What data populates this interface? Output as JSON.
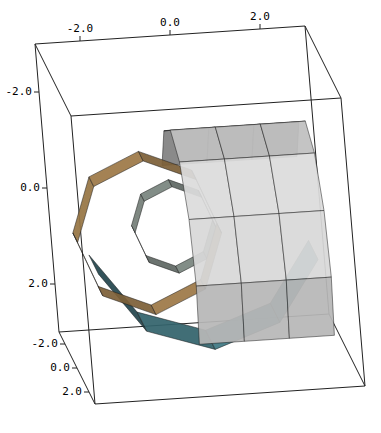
{
  "chart_data": {
    "type": "surface3d",
    "xlim": [
      -3,
      3
    ],
    "ylim": [
      -3,
      3
    ],
    "zlim": [
      -3,
      3
    ],
    "xticks": [
      {
        "value": -2,
        "label": "-2.0"
      },
      {
        "value": 0,
        "label": "0.0"
      },
      {
        "value": 2,
        "label": "2.0"
      }
    ],
    "yticks": [
      {
        "value": -2,
        "label": "-2.0"
      },
      {
        "value": 0,
        "label": "0.0"
      },
      {
        "value": 2,
        "label": "2.0"
      }
    ],
    "zticks": [
      {
        "value": -2,
        "label": "-2.0"
      },
      {
        "value": 0,
        "label": "0.0"
      },
      {
        "value": 2,
        "label": "2.0"
      }
    ],
    "surfaces": [
      {
        "color": "#e8e8e8",
        "points": [
          [
            [
              -0.5,
              -0.5,
              -2.25
            ],
            [
              -0.5,
              -1.46,
              -1.3
            ],
            [
              -0.5,
              -1.8,
              0
            ],
            [
              -0.5,
              -1.46,
              1.3
            ],
            [
              -0.5,
              -0.5,
              2.25
            ],
            [
              -0.5,
              0.8,
              2.6
            ],
            [
              -0.5,
              2.1,
              2.25
            ]
          ],
          [
            [
              0.5,
              -0.5,
              -2.25
            ],
            [
              0.5,
              -1.46,
              -1.3
            ],
            [
              0.5,
              -1.8,
              0
            ],
            [
              0.5,
              -1.46,
              1.3
            ],
            [
              0.5,
              -0.5,
              2.25
            ],
            [
              0.5,
              0.8,
              2.6
            ],
            [
              0.5,
              2.1,
              2.25
            ]
          ],
          [
            [
              1.5,
              -0.5,
              -2.25
            ],
            [
              1.5,
              -1.46,
              -1.3
            ],
            [
              1.5,
              -1.8,
              0
            ],
            [
              1.5,
              -1.46,
              1.3
            ],
            [
              1.5,
              -0.5,
              2.25
            ],
            [
              1.5,
              0.8,
              2.6
            ],
            [
              1.5,
              2.1,
              2.25
            ]
          ],
          [
            [
              2.5,
              -0.5,
              -2.25
            ],
            [
              2.5,
              -1.46,
              -1.3
            ],
            [
              2.5,
              -1.8,
              0
            ],
            [
              2.5,
              -1.46,
              1.3
            ],
            [
              2.5,
              -0.5,
              2.25
            ],
            [
              2.5,
              0.8,
              2.6
            ],
            [
              2.5,
              2.1,
              2.25
            ]
          ]
        ]
      },
      {
        "color": "#c89a5a",
        "points": [
          [
            [
              0.4,
              0.3,
              -0.4
            ],
            [
              -0.06,
              1.44,
              -0.4
            ],
            [
              -1.2,
              1.9,
              -0.4
            ],
            [
              -2.34,
              1.44,
              -0.4
            ],
            [
              -2.8,
              0.3,
              -0.4
            ],
            [
              -2.34,
              -0.84,
              -0.4
            ],
            [
              -1.2,
              -1.3,
              -0.4
            ],
            [
              -0.06,
              -0.84,
              -0.4
            ],
            [
              0.4,
              0.3,
              -0.4
            ]
          ],
          [
            [
              0.4,
              0.3,
              0.4
            ],
            [
              -0.06,
              1.44,
              0.4
            ],
            [
              -1.2,
              1.9,
              0.4
            ],
            [
              -2.34,
              1.44,
              0.4
            ],
            [
              -2.8,
              0.3,
              0.4
            ],
            [
              -2.34,
              -0.84,
              0.4
            ],
            [
              -1.2,
              -1.3,
              0.4
            ],
            [
              -0.06,
              -0.84,
              0.4
            ],
            [
              0.4,
              0.3,
              0.4
            ]
          ]
        ]
      },
      {
        "color": "#9aa8a0",
        "points": [
          [
            [
              0.3,
              0.2,
              -0.3
            ],
            [
              0.04,
              0.84,
              -0.3
            ],
            [
              -0.6,
              1.1,
              -0.3
            ],
            [
              -1.24,
              0.84,
              -0.3
            ],
            [
              -1.5,
              0.2,
              -0.3
            ],
            [
              -1.24,
              -0.44,
              -0.3
            ],
            [
              -0.6,
              -0.7,
              -0.3
            ],
            [
              0.04,
              -0.44,
              -0.3
            ],
            [
              0.3,
              0.2,
              -0.3
            ]
          ],
          [
            [
              0.3,
              0.2,
              0.3
            ],
            [
              0.04,
              0.84,
              0.3
            ],
            [
              -0.6,
              1.1,
              0.3
            ],
            [
              -1.24,
              0.84,
              0.3
            ],
            [
              -1.5,
              0.2,
              0.3
            ],
            [
              -1.24,
              -0.44,
              0.3
            ],
            [
              -0.6,
              -0.7,
              0.3
            ],
            [
              0.04,
              -0.44,
              0.3
            ],
            [
              0.3,
              0.2,
              0.3
            ]
          ]
        ]
      },
      {
        "color": "#4f9aa8",
        "points": [
          [
            [
              -2.44,
              0.88,
              -0.8
            ],
            [
              -1.48,
              2.13,
              -0.8
            ],
            [
              0,
              2.6,
              -0.8
            ],
            [
              1.48,
              2.13,
              -0.8
            ],
            [
              2.44,
              0.88,
              -0.8
            ]
          ],
          [
            [
              -2.44,
              0.88,
              0.8
            ],
            [
              -1.48,
              2.13,
              0.8
            ],
            [
              0,
              2.6,
              0.8
            ],
            [
              1.48,
              2.13,
              0.8
            ],
            [
              2.44,
              0.88,
              0.8
            ]
          ]
        ]
      }
    ]
  }
}
